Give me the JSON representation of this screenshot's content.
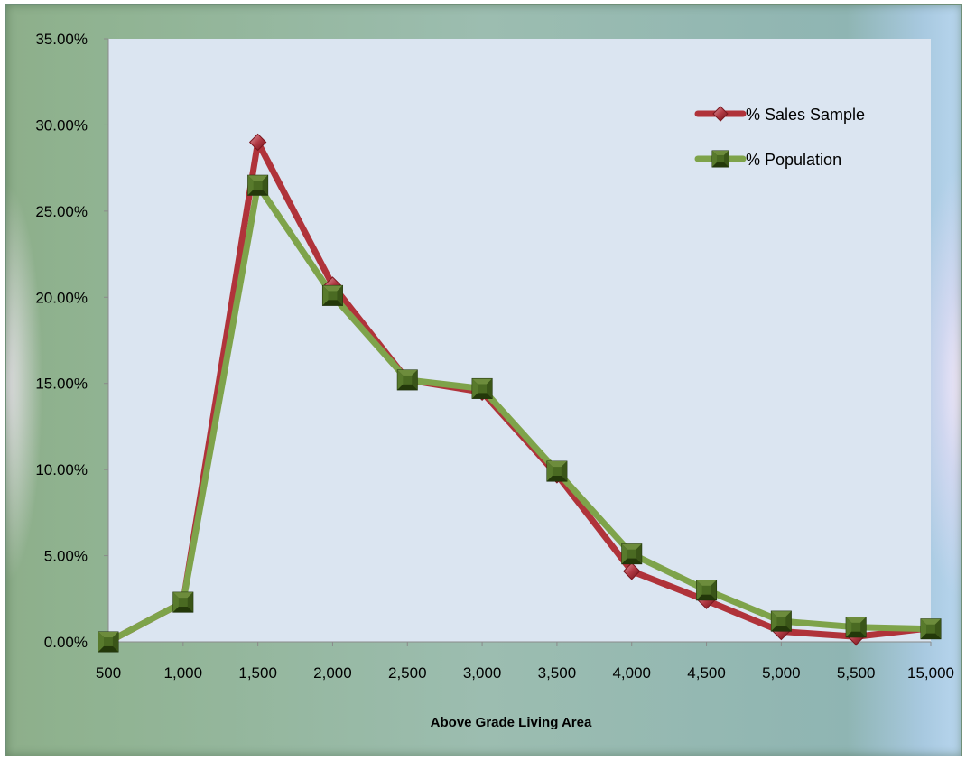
{
  "chart_data": {
    "type": "line",
    "categories": [
      "500",
      "1,000",
      "1,500",
      "2,000",
      "2,500",
      "3,000",
      "3,500",
      "4,000",
      "4,500",
      "5,000",
      "5,500",
      "15,000"
    ],
    "series": [
      {
        "name": "% Sales Sample",
        "values": [
          0.0,
          2.3,
          29.0,
          20.7,
          15.2,
          14.5,
          9.7,
          4.1,
          2.4,
          0.6,
          0.3,
          0.8
        ],
        "color": "#b0333a",
        "marker": "diamond"
      },
      {
        "name": "% Population",
        "values": [
          0.0,
          2.3,
          26.5,
          20.1,
          15.2,
          14.7,
          9.9,
          5.1,
          3.0,
          1.2,
          0.85,
          0.75
        ],
        "color": "#7ea34a",
        "marker": "square"
      }
    ],
    "yticks": [
      "0.00%",
      "5.00%",
      "10.00%",
      "15.00%",
      "20.00%",
      "25.00%",
      "30.00%",
      "35.00%"
    ],
    "ylim": [
      0,
      35
    ],
    "xlabel": "Above Grade Living Area",
    "ylabel": "",
    "title": "",
    "grid": false,
    "legend_position": "top-right"
  }
}
